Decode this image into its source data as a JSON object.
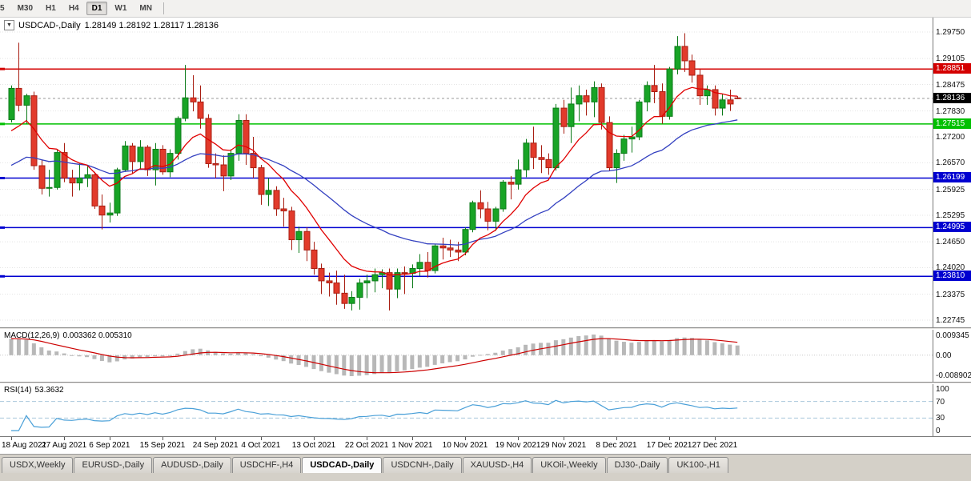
{
  "toolbar": {
    "timeframes": [
      {
        "label": "5",
        "active": false
      },
      {
        "label": "M30",
        "active": false
      },
      {
        "label": "H1",
        "active": false
      },
      {
        "label": "H4",
        "active": false
      },
      {
        "label": "D1",
        "active": true
      },
      {
        "label": "W1",
        "active": false
      },
      {
        "label": "MN",
        "active": false
      }
    ]
  },
  "chart": {
    "dropdown_glyph": "▼",
    "symbol_label": "USDCAD-,Daily",
    "ohlc_label": "1.28149 1.28192 1.28117 1.28136"
  },
  "colors": {
    "up": "#18a426",
    "up_border": "#0b7a18",
    "down": "#e23a2b",
    "down_border": "#a81e12",
    "grid": "#e4e4e4",
    "current_badge": "#000000"
  },
  "macd_panel": {
    "label": "MACD(12,26,9)",
    "values": "0.003362 0.005310",
    "axis": [
      "0.009345",
      "0.00",
      "-0.008902"
    ]
  },
  "rsi_panel": {
    "label": "RSI(14)",
    "value": "53.3632",
    "axis": [
      "100",
      "70",
      "30",
      "0"
    ],
    "levels": [
      70,
      30
    ]
  },
  "tabs": [
    {
      "label": "USDX,Weekly",
      "active": false
    },
    {
      "label": "EURUSD-,Daily",
      "active": false
    },
    {
      "label": "AUDUSD-,Daily",
      "active": false
    },
    {
      "label": "USDCHF-,H4",
      "active": false
    },
    {
      "label": "USDCAD-,Daily",
      "active": true
    },
    {
      "label": "USDCNH-,Daily",
      "active": false
    },
    {
      "label": "XAUUSD-,H4",
      "active": false
    },
    {
      "label": "UKOil-,Weekly",
      "active": false
    },
    {
      "label": "DJ30-,Daily",
      "active": false
    },
    {
      "label": "UK100-,H1",
      "active": false
    }
  ],
  "chart_data": {
    "type": "candlestick",
    "symbol": "USDCAD",
    "timeframe": "Daily",
    "current_price": "1.28136",
    "y_range": {
      "max": 1.2975,
      "min": 1.22745
    },
    "y_axis_labels": [
      "1.29750",
      "1.29105",
      "1.28475",
      "1.27830",
      "1.27200",
      "1.26570",
      "1.25925",
      "1.25295",
      "1.24650",
      "1.24020",
      "1.23375",
      "1.22745"
    ],
    "hlines": [
      {
        "price": 1.28851,
        "label": "1.28851",
        "color": "#d40000"
      },
      {
        "price": 1.27515,
        "label": "1.27515",
        "color": "#00c000"
      },
      {
        "price": 1.26199,
        "label": "1.26199",
        "color": "#0000d0"
      },
      {
        "price": 1.24995,
        "label": "1.24995",
        "color": "#0000d0"
      },
      {
        "price": 1.2381,
        "label": "1.23810",
        "color": "#0000d0"
      }
    ],
    "date_ticks": [
      {
        "i": 0,
        "label": "18 Aug 2021"
      },
      {
        "i": 7,
        "label": "27 Aug 2021"
      },
      {
        "i": 13,
        "label": "6 Sep 2021"
      },
      {
        "i": 20,
        "label": "15 Sep 2021"
      },
      {
        "i": 27,
        "label": "24 Sep 2021"
      },
      {
        "i": 33,
        "label": "4 Oct 2021"
      },
      {
        "i": 40,
        "label": "13 Oct 2021"
      },
      {
        "i": 47,
        "label": "22 Oct 2021"
      },
      {
        "i": 53,
        "label": "1 Nov 2021"
      },
      {
        "i": 60,
        "label": "10 Nov 2021"
      },
      {
        "i": 67,
        "label": "19 Nov 2021"
      },
      {
        "i": 73,
        "label": "29 Nov 2021"
      },
      {
        "i": 80,
        "label": "8 Dec 2021"
      },
      {
        "i": 87,
        "label": "17 Dec 2021"
      },
      {
        "i": 93,
        "label": "27 Dec 2021"
      }
    ],
    "indicators": {
      "ma_fast": {
        "period": 10,
        "seed": 1.2712,
        "color": "#e00000"
      },
      "ma_slow": {
        "period": 30,
        "seed": 1.2638,
        "color": "#3340c0"
      },
      "macd": {
        "fast": 12,
        "slow": 26,
        "signal": 9,
        "seed_fast": 1.276,
        "seed_slow": 1.269,
        "hist_color": "#b8b8b8",
        "signal_color": "#cc0000"
      },
      "rsi": {
        "period": 14,
        "color": "#4aa0d8",
        "level_color": "#a9c7dc"
      }
    },
    "candles": [
      [
        1.2762,
        1.2845,
        1.2755,
        1.2838
      ],
      [
        1.2838,
        1.2949,
        1.2782,
        1.2797
      ],
      [
        1.2797,
        1.2825,
        1.2752,
        1.282
      ],
      [
        1.282,
        1.283,
        1.264,
        1.265
      ],
      [
        1.265,
        1.2665,
        1.258,
        1.2595
      ],
      [
        1.2595,
        1.264,
        1.2575,
        1.2597
      ],
      [
        1.2597,
        1.269,
        1.2592,
        1.2682
      ],
      [
        1.2682,
        1.2705,
        1.261,
        1.262
      ],
      [
        1.262,
        1.264,
        1.2575,
        1.2608
      ],
      [
        1.2608,
        1.2655,
        1.259,
        1.262
      ],
      [
        1.262,
        1.2648,
        1.2598,
        1.2628
      ],
      [
        1.2628,
        1.2635,
        1.2545,
        1.2552
      ],
      [
        1.2552,
        1.258,
        1.2495,
        1.253
      ],
      [
        1.253,
        1.256,
        1.2512,
        1.2535
      ],
      [
        1.2535,
        1.2645,
        1.2528,
        1.264
      ],
      [
        1.264,
        1.271,
        1.2635,
        1.2698
      ],
      [
        1.2698,
        1.2705,
        1.263,
        1.266
      ],
      [
        1.266,
        1.2712,
        1.264,
        1.2695
      ],
      [
        1.2695,
        1.27,
        1.2625,
        1.264
      ],
      [
        1.264,
        1.2705,
        1.2602,
        1.269
      ],
      [
        1.269,
        1.27,
        1.2628,
        1.2635
      ],
      [
        1.2635,
        1.269,
        1.2622,
        1.268
      ],
      [
        1.268,
        1.277,
        1.2665,
        1.2765
      ],
      [
        1.2765,
        1.2895,
        1.2758,
        1.2815
      ],
      [
        1.2815,
        1.287,
        1.2782,
        1.2805
      ],
      [
        1.2805,
        1.2845,
        1.274,
        1.2765
      ],
      [
        1.2765,
        1.2775,
        1.2645,
        1.2655
      ],
      [
        1.2655,
        1.268,
        1.262,
        1.2652
      ],
      [
        1.2652,
        1.2675,
        1.2588,
        1.2625
      ],
      [
        1.2625,
        1.269,
        1.2615,
        1.268
      ],
      [
        1.268,
        1.2775,
        1.2662,
        1.276
      ],
      [
        1.276,
        1.2775,
        1.2652,
        1.268
      ],
      [
        1.268,
        1.272,
        1.262,
        1.2645
      ],
      [
        1.2645,
        1.2652,
        1.2555,
        1.258
      ],
      [
        1.258,
        1.262,
        1.2552,
        1.259
      ],
      [
        1.259,
        1.26,
        1.2528,
        1.2545
      ],
      [
        1.2545,
        1.2572,
        1.2502,
        1.254
      ],
      [
        1.254,
        1.255,
        1.2445,
        1.247
      ],
      [
        1.247,
        1.2502,
        1.2438,
        1.249
      ],
      [
        1.249,
        1.25,
        1.2418,
        1.2445
      ],
      [
        1.2445,
        1.2465,
        1.2385,
        1.24
      ],
      [
        1.24,
        1.2412,
        1.2338,
        1.237
      ],
      [
        1.237,
        1.239,
        1.2332,
        1.2365
      ],
      [
        1.2365,
        1.2395,
        1.2312,
        1.234
      ],
      [
        1.234,
        1.2385,
        1.2302,
        1.2315
      ],
      [
        1.2315,
        1.2345,
        1.2298,
        1.233
      ],
      [
        1.233,
        1.2375,
        1.23,
        1.2365
      ],
      [
        1.2365,
        1.2385,
        1.2328,
        1.237
      ],
      [
        1.237,
        1.24,
        1.2342,
        1.2385
      ],
      [
        1.2385,
        1.2398,
        1.2352,
        1.239
      ],
      [
        1.239,
        1.24,
        1.2298,
        1.235
      ],
      [
        1.235,
        1.24,
        1.2328,
        1.239
      ],
      [
        1.239,
        1.2405,
        1.2338,
        1.2388
      ],
      [
        1.2388,
        1.241,
        1.2352,
        1.24
      ],
      [
        1.24,
        1.2435,
        1.2382,
        1.2415
      ],
      [
        1.2415,
        1.244,
        1.2378,
        1.2395
      ],
      [
        1.2395,
        1.246,
        1.2388,
        1.2455
      ],
      [
        1.2455,
        1.2475,
        1.2422,
        1.245
      ],
      [
        1.245,
        1.247,
        1.2428,
        1.2445
      ],
      [
        1.2445,
        1.2465,
        1.2418,
        1.244
      ],
      [
        1.244,
        1.25,
        1.2432,
        1.2495
      ],
      [
        1.2495,
        1.2565,
        1.2488,
        1.256
      ],
      [
        1.256,
        1.259,
        1.2522,
        1.2545
      ],
      [
        1.2545,
        1.2562,
        1.2493,
        1.2515
      ],
      [
        1.2515,
        1.255,
        1.2492,
        1.2545
      ],
      [
        1.2545,
        1.2615,
        1.2538,
        1.261
      ],
      [
        1.261,
        1.2625,
        1.2568,
        1.2605
      ],
      [
        1.2605,
        1.2665,
        1.2592,
        1.264
      ],
      [
        1.264,
        1.2715,
        1.2622,
        1.2705
      ],
      [
        1.2705,
        1.2745,
        1.2642,
        1.267
      ],
      [
        1.267,
        1.27,
        1.2632,
        1.2665
      ],
      [
        1.2665,
        1.268,
        1.2628,
        1.2645
      ],
      [
        1.2645,
        1.28,
        1.2638,
        1.279
      ],
      [
        1.279,
        1.281,
        1.2728,
        1.2745
      ],
      [
        1.2745,
        1.284,
        1.2705,
        1.28
      ],
      [
        1.28,
        1.2845,
        1.2758,
        1.282
      ],
      [
        1.282,
        1.2835,
        1.2772,
        1.2805
      ],
      [
        1.2805,
        1.2855,
        1.2768,
        1.284
      ],
      [
        1.284,
        1.285,
        1.2738,
        1.2755
      ],
      [
        1.2755,
        1.277,
        1.2638,
        1.2645
      ],
      [
        1.2645,
        1.269,
        1.2608,
        1.268
      ],
      [
        1.268,
        1.2725,
        1.2662,
        1.2715
      ],
      [
        1.2715,
        1.2745,
        1.2682,
        1.272
      ],
      [
        1.272,
        1.281,
        1.2712,
        1.2805
      ],
      [
        1.2805,
        1.2855,
        1.2782,
        1.2845
      ],
      [
        1.2845,
        1.2895,
        1.2802,
        1.283
      ],
      [
        1.283,
        1.285,
        1.2752,
        1.277
      ],
      [
        1.277,
        1.289,
        1.2762,
        1.2885
      ],
      [
        1.2885,
        1.2965,
        1.2872,
        1.294
      ],
      [
        1.294,
        1.2972,
        1.2878,
        1.2905
      ],
      [
        1.2905,
        1.292,
        1.2852,
        1.287
      ],
      [
        1.287,
        1.2885,
        1.2798,
        1.282
      ],
      [
        1.282,
        1.2845,
        1.2798,
        1.2835
      ],
      [
        1.2835,
        1.2845,
        1.2772,
        1.279
      ],
      [
        1.279,
        1.2825,
        1.2772,
        1.281
      ],
      [
        1.281,
        1.2835,
        1.2783,
        1.28
      ],
      [
        1.28149,
        1.28192,
        1.28117,
        1.28136
      ]
    ]
  }
}
